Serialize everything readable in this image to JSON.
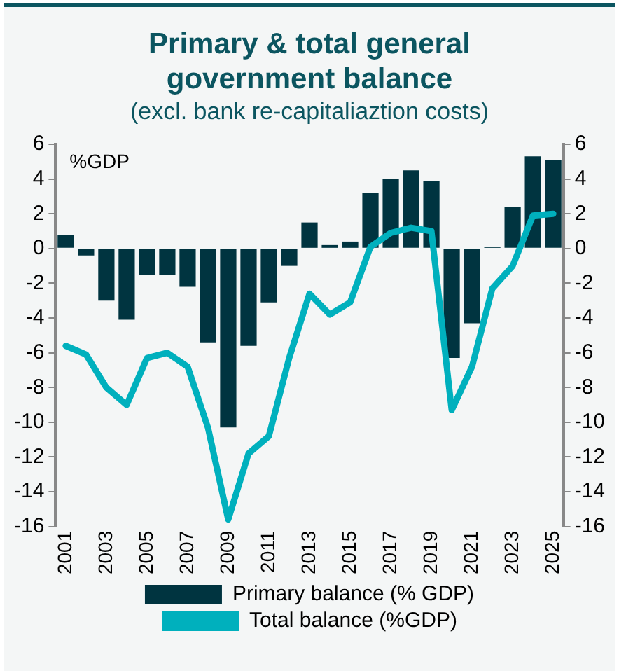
{
  "chart_data": {
    "type": "bar",
    "title": "Primary & total general government balance",
    "subtitle": "(excl. bank re-capitaliaztion costs)",
    "annotations": [
      "%GDP"
    ],
    "categories": [
      "2001",
      null,
      "2003",
      null,
      "2005",
      null,
      "2007",
      null,
      "2009",
      null,
      "2011",
      null,
      "2013",
      null,
      "2015",
      null,
      "2017",
      null,
      "2019",
      null,
      "2021",
      null,
      "2023",
      null,
      "2025"
    ],
    "series": [
      {
        "name": "Primary balance (% GDP)",
        "color": "#003440",
        "values": [
          0.8,
          -0.4,
          -3.0,
          -4.1,
          -1.5,
          -1.5,
          -2.2,
          -5.4,
          -10.3,
          -5.6,
          -3.1,
          -1.0,
          1.5,
          0.2,
          0.4,
          3.2,
          4.0,
          4.5,
          3.9,
          -6.3,
          -4.3,
          0.1,
          2.4,
          5.3,
          5.1
        ]
      },
      {
        "name": "Total balance (%GDP)",
        "type": "line",
        "color": "#00b0bd",
        "values": [
          -5.6,
          -6.1,
          -8.0,
          -9.0,
          -6.3,
          -6.0,
          -6.8,
          -10.3,
          -15.6,
          -11.8,
          -10.8,
          -6.3,
          -2.6,
          -3.8,
          -3.1,
          0.1,
          0.9,
          1.2,
          1.0,
          -9.3,
          -6.8,
          -2.3,
          -1.0,
          1.9,
          2.0
        ]
      }
    ],
    "ylim": [
      -16,
      6
    ],
    "yticks": [
      -16,
      -14,
      -12,
      -10,
      -8,
      -6,
      -4,
      -2,
      0,
      2,
      4,
      6
    ],
    "y2lim": [
      -16,
      6
    ],
    "y2ticks": [
      -16,
      -14,
      -12,
      -10,
      -8,
      -6,
      -4,
      -2,
      0,
      2,
      4,
      6
    ],
    "grid": false,
    "legend": "bottom",
    "marker": "none",
    "line_style": "solid"
  }
}
